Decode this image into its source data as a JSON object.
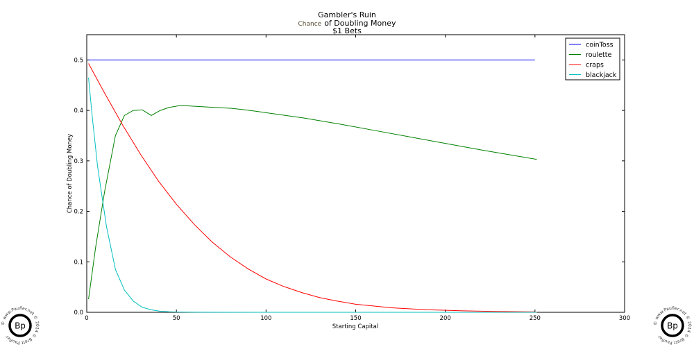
{
  "chart_data": {
    "type": "line",
    "title": {
      "line1": "Gambler's Ruin",
      "line2_prefix": "Chance",
      "line2_rest": "of Doubling Money",
      "line3": "$1 Bets"
    },
    "xlabel": "Starting Capital",
    "ylabel": "Chance of Doubling Money",
    "xlim": [
      0,
      300
    ],
    "ylim": [
      0,
      0.55
    ],
    "xticks": [
      0,
      50,
      100,
      150,
      200,
      250,
      300
    ],
    "yticks": [
      0.0,
      0.1,
      0.2,
      0.3,
      0.4,
      0.5
    ],
    "ytick_labels": [
      "0.0",
      "0.1",
      "0.2",
      "0.3",
      "0.4",
      "0.5"
    ],
    "grid": false,
    "legend_position": "top-right",
    "series": [
      {
        "name": "coinToss",
        "color": "#0000ff",
        "points": [
          [
            1,
            0.5
          ],
          [
            250,
            0.5
          ]
        ]
      },
      {
        "name": "roulette",
        "color": "#008000",
        "points": [
          [
            1,
            0.026
          ],
          [
            5,
            0.13
          ],
          [
            10,
            0.24
          ],
          [
            16,
            0.35
          ],
          [
            21,
            0.39
          ],
          [
            26,
            0.4
          ],
          [
            31,
            0.401
          ],
          [
            36,
            0.39
          ],
          [
            41,
            0.4
          ],
          [
            46,
            0.406
          ],
          [
            51,
            0.409
          ],
          [
            56,
            0.409
          ],
          [
            61,
            0.408
          ],
          [
            71,
            0.406
          ],
          [
            81,
            0.404
          ],
          [
            91,
            0.4
          ],
          [
            101,
            0.395
          ],
          [
            121,
            0.385
          ],
          [
            141,
            0.373
          ],
          [
            161,
            0.36
          ],
          [
            181,
            0.347
          ],
          [
            201,
            0.334
          ],
          [
            221,
            0.321
          ],
          [
            241,
            0.309
          ],
          [
            251,
            0.303
          ]
        ]
      },
      {
        "name": "craps",
        "color": "#ff0000",
        "points": [
          [
            1,
            0.493
          ],
          [
            10,
            0.434
          ],
          [
            20,
            0.371
          ],
          [
            30,
            0.313
          ],
          [
            40,
            0.26
          ],
          [
            50,
            0.214
          ],
          [
            60,
            0.174
          ],
          [
            70,
            0.139
          ],
          [
            80,
            0.11
          ],
          [
            90,
            0.086
          ],
          [
            100,
            0.066
          ],
          [
            110,
            0.051
          ],
          [
            120,
            0.039
          ],
          [
            130,
            0.029
          ],
          [
            140,
            0.022
          ],
          [
            150,
            0.016
          ],
          [
            170,
            0.009
          ],
          [
            190,
            0.005
          ],
          [
            210,
            0.003
          ],
          [
            230,
            0.0015
          ],
          [
            250,
            0.0008
          ]
        ]
      },
      {
        "name": "blackjack",
        "color": "#00bfbf",
        "points": [
          [
            1,
            0.465
          ],
          [
            3,
            0.39
          ],
          [
            6,
            0.29
          ],
          [
            11,
            0.17
          ],
          [
            16,
            0.085
          ],
          [
            21,
            0.044
          ],
          [
            26,
            0.022
          ],
          [
            31,
            0.01
          ],
          [
            36,
            0.005
          ],
          [
            41,
            0.002
          ],
          [
            46,
            0.001
          ],
          [
            51,
            0.0005
          ],
          [
            61,
            0.0001
          ],
          [
            101,
            0.0
          ],
          [
            151,
            0.0
          ],
          [
            201,
            0.0
          ],
          [
            251,
            0.0
          ]
        ]
      }
    ]
  },
  "watermark": {
    "ring_text": "© www.Paufler.net © 2014 © Brett Paufler ",
    "monogram": "Bp"
  }
}
